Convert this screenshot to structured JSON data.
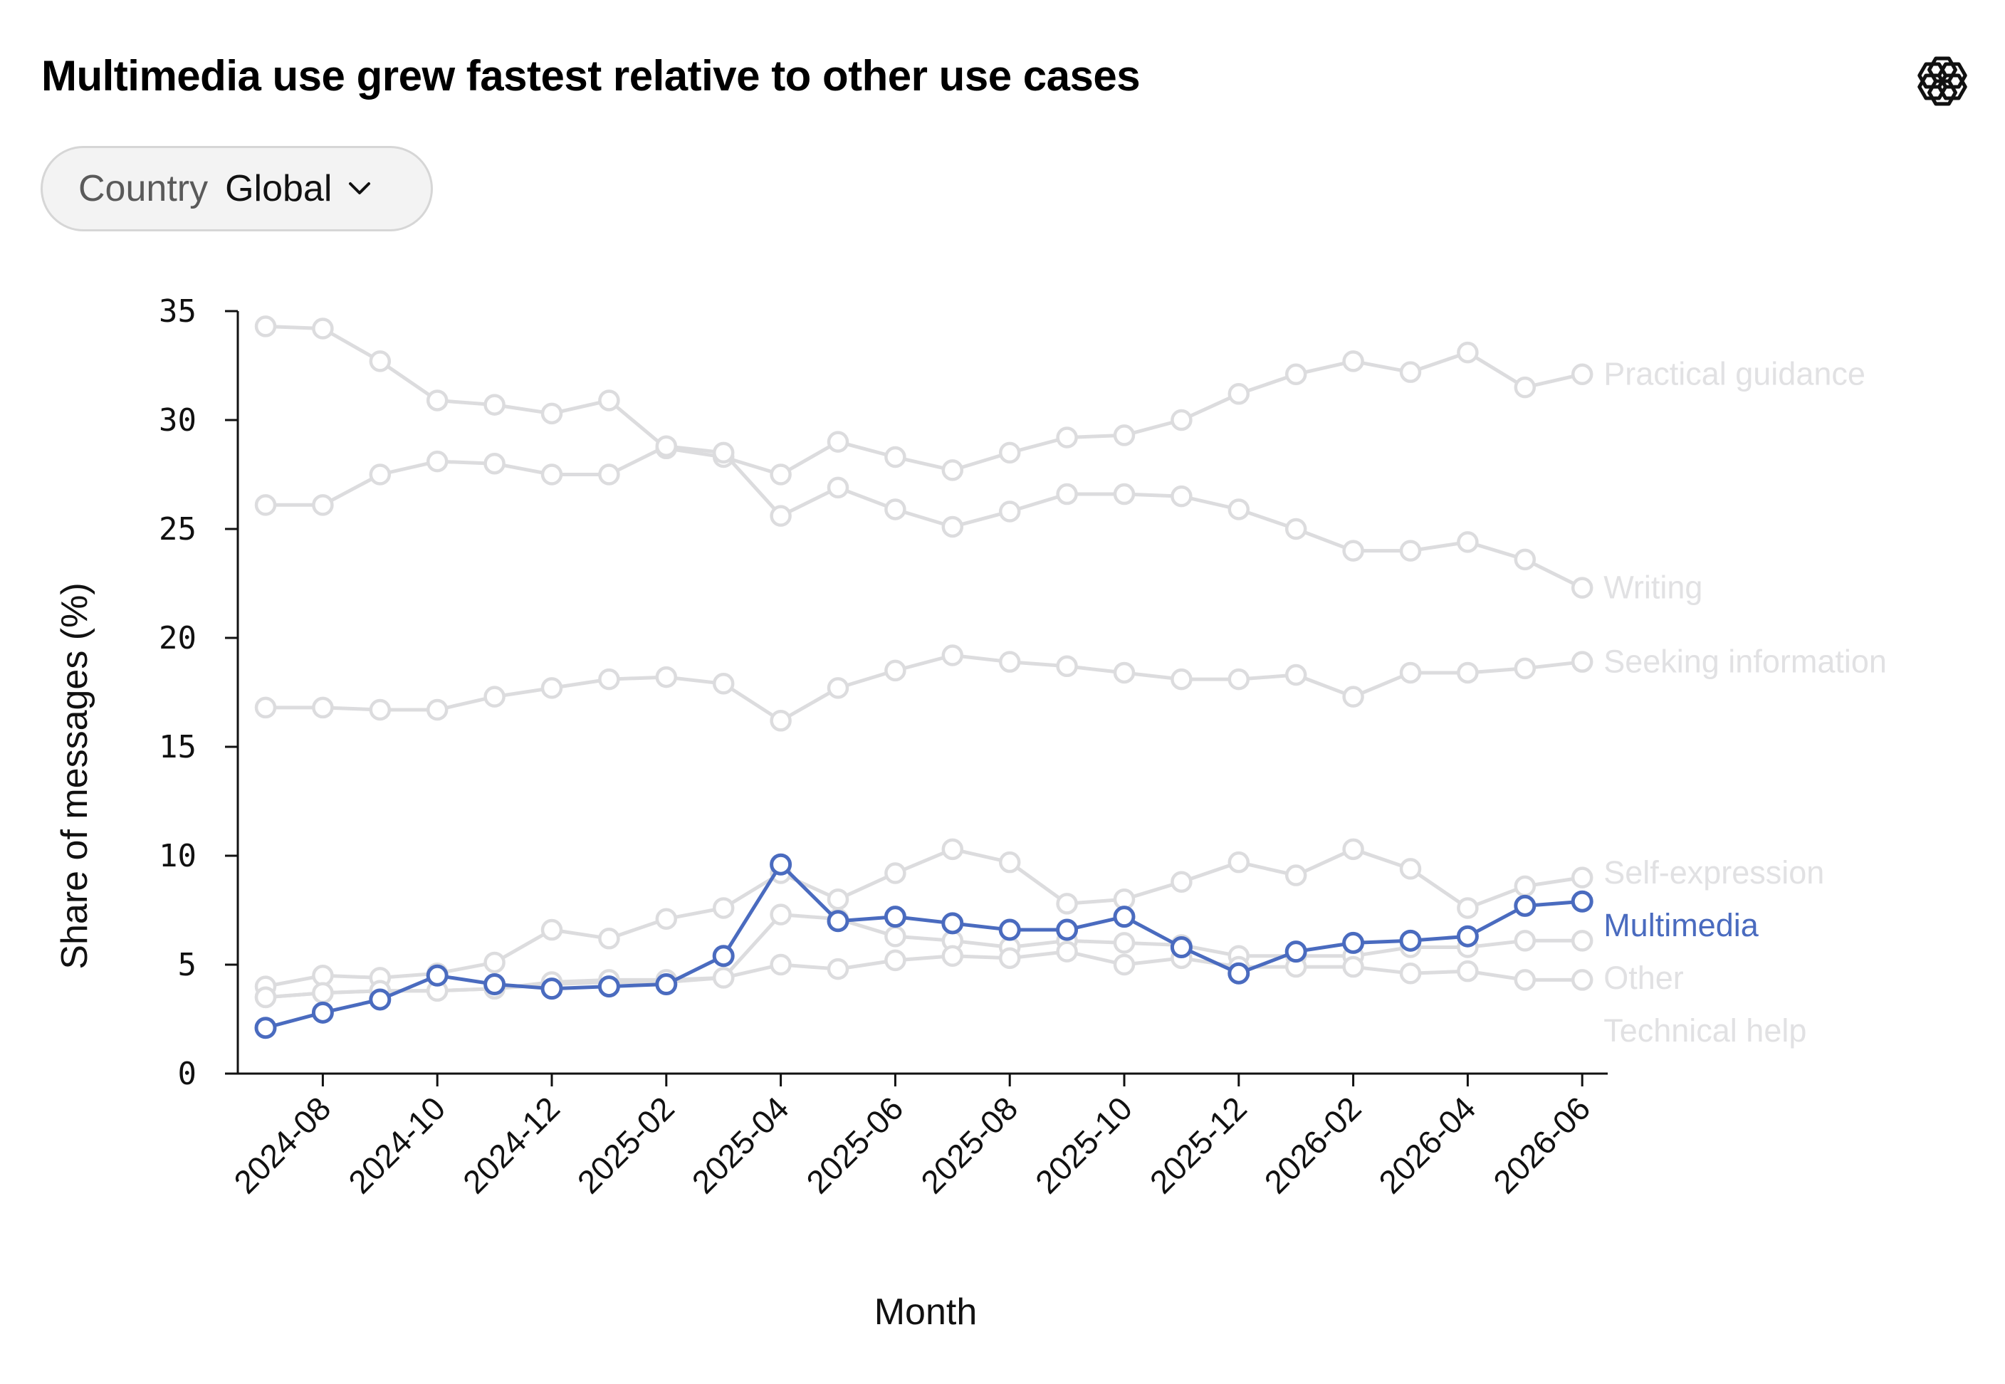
{
  "header": {
    "title": "Multimedia use grew fastest relative to other use cases",
    "logo_icon": "openai-logo-icon"
  },
  "filter": {
    "label": "Country",
    "value": "Global",
    "icon": "chevron-down-icon"
  },
  "colors": {
    "highlight": "#4a6bbf",
    "muted": "#dcdcde",
    "muted_label": "#e1e1e3"
  },
  "chart_data": {
    "type": "line",
    "xlabel": "Month",
    "ylabel": "Share of messages (%)",
    "ylim": [
      0,
      35
    ],
    "yticks": [
      0,
      5,
      10,
      15,
      20,
      25,
      30,
      35
    ],
    "x": [
      "2024-07",
      "2024-08",
      "2024-09",
      "2024-10",
      "2024-11",
      "2024-12",
      "2025-01",
      "2025-02",
      "2025-03",
      "2025-04",
      "2025-05",
      "2025-06",
      "2025-07",
      "2025-08",
      "2025-09",
      "2025-10",
      "2025-11",
      "2025-12",
      "2026-01",
      "2026-02",
      "2026-03",
      "2026-04",
      "2026-05",
      "2026-06"
    ],
    "xticks": [
      "2024-08",
      "2024-10",
      "2024-12",
      "2025-02",
      "2025-04",
      "2025-06",
      "2025-08",
      "2025-10",
      "2025-12",
      "2026-02",
      "2026-04",
      "2026-06"
    ],
    "highlight_series": "Multimedia",
    "series": [
      {
        "name": "Practical guidance",
        "values": [
          34.3,
          34.2,
          32.7,
          30.9,
          30.7,
          30.3,
          30.9,
          28.7,
          28.3,
          27.5,
          29.0,
          28.3,
          27.7,
          28.5,
          29.2,
          29.3,
          30.0,
          31.2,
          32.1,
          32.7,
          32.2,
          33.1,
          31.5,
          32.1
        ]
      },
      {
        "name": "Writing",
        "values": [
          26.1,
          26.1,
          27.5,
          28.1,
          28.0,
          27.5,
          27.5,
          28.8,
          28.5,
          25.6,
          26.9,
          25.9,
          25.1,
          25.8,
          26.6,
          26.6,
          26.5,
          25.9,
          25.0,
          24.0,
          24.0,
          24.4,
          23.6,
          22.3
        ]
      },
      {
        "name": "Seeking information",
        "values": [
          16.8,
          16.8,
          16.7,
          16.7,
          17.3,
          17.7,
          18.1,
          18.2,
          17.9,
          16.2,
          17.7,
          18.5,
          19.2,
          18.9,
          18.7,
          18.4,
          18.1,
          18.1,
          18.3,
          17.3,
          18.4,
          18.4,
          18.6,
          18.9
        ]
      },
      {
        "name": "Self-expression",
        "values": [
          4.0,
          4.5,
          4.4,
          4.6,
          5.1,
          6.6,
          6.2,
          7.1,
          7.6,
          9.2,
          8.0,
          9.2,
          10.3,
          9.7,
          7.8,
          8.0,
          8.8,
          9.7,
          9.1,
          10.3,
          9.4,
          7.6,
          8.6,
          9.0
        ]
      },
      {
        "name": "Multimedia",
        "values": [
          2.1,
          2.8,
          3.4,
          4.5,
          4.1,
          3.9,
          4.0,
          4.1,
          5.4,
          9.6,
          7.0,
          7.2,
          6.9,
          6.6,
          6.6,
          7.2,
          5.8,
          4.6,
          5.6,
          6.0,
          6.1,
          6.3,
          7.7,
          7.9
        ]
      },
      {
        "name": "Other",
        "values": [
          3.5,
          3.7,
          3.8,
          3.8,
          3.9,
          4.1,
          4.2,
          4.2,
          4.4,
          7.3,
          7.1,
          6.3,
          6.1,
          5.8,
          6.1,
          6.0,
          5.9,
          5.4,
          5.4,
          5.4,
          5.8,
          5.8,
          6.1,
          6.1
        ]
      },
      {
        "name": "Technical help",
        "values": [
          3.5,
          3.7,
          3.8,
          3.8,
          3.9,
          4.2,
          4.3,
          4.3,
          4.4,
          5.0,
          4.8,
          5.2,
          5.4,
          5.3,
          5.6,
          5.0,
          5.3,
          4.9,
          4.9,
          4.9,
          4.6,
          4.7,
          4.3,
          4.3
        ]
      }
    ]
  }
}
